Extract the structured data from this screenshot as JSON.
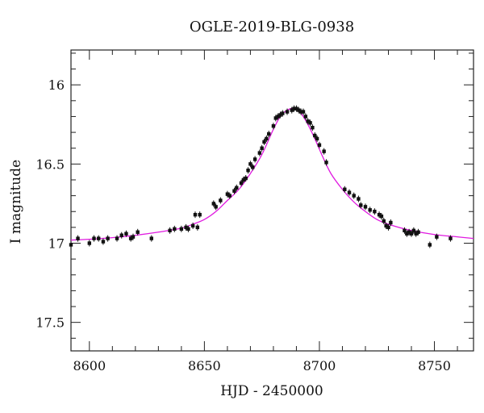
{
  "chart_data": {
    "type": "scatter",
    "title": "OGLE-2019-BLG-0938",
    "xlabel": "HJD - 2450000",
    "ylabel": "I magnitude",
    "xlim": [
      8592,
      8767
    ],
    "ylim": [
      17.68,
      15.78
    ],
    "y_inverted": true,
    "x_ticks": [
      8600,
      8650,
      8700,
      8750
    ],
    "y_ticks": [
      16,
      16.5,
      17,
      17.5
    ],
    "x_tick_labels": [
      "8600",
      "8650",
      "8700",
      "8750"
    ],
    "y_tick_labels": [
      "16",
      "16.5",
      "17",
      "17.5"
    ],
    "grid": false,
    "colors": {
      "points": "#111111",
      "model": "#e01be0"
    },
    "model": {
      "name": "",
      "x": [
        8592,
        8600,
        8610,
        8620,
        8630,
        8640,
        8645,
        8650,
        8655,
        8660,
        8665,
        8670,
        8675,
        8680,
        8683,
        8686,
        8689,
        8692,
        8695,
        8698,
        8701,
        8705,
        8710,
        8715,
        8720,
        8725,
        8730,
        8740,
        8750,
        8760,
        8767
      ],
      "y": [
        16.98,
        16.975,
        16.965,
        16.95,
        16.93,
        16.905,
        16.88,
        16.85,
        16.8,
        16.73,
        16.66,
        16.56,
        16.44,
        16.28,
        16.2,
        16.16,
        16.15,
        16.18,
        16.25,
        16.34,
        16.44,
        16.56,
        16.66,
        16.74,
        16.8,
        16.85,
        16.88,
        16.92,
        16.945,
        16.96,
        16.97
      ]
    },
    "series": [
      {
        "name": "",
        "x": [
          8592,
          8595,
          8600,
          8602,
          8604,
          8606,
          8608,
          8612,
          8614,
          8616,
          8618,
          8619,
          8621,
          8627,
          8635,
          8637,
          8640,
          8642,
          8643,
          8645,
          8646,
          8647,
          8648,
          8654,
          8655,
          8657,
          8660,
          8661,
          8663,
          8664,
          8666,
          8667,
          8668,
          8669,
          8670,
          8671,
          8672,
          8674,
          8675,
          8676,
          8677,
          8678,
          8680,
          8681,
          8682,
          8683,
          8684,
          8686,
          8688,
          8689,
          8690,
          8691,
          8692,
          8693,
          8694,
          8695,
          8696,
          8697,
          8698,
          8699,
          8700,
          8702,
          8703,
          8711,
          8713,
          8715,
          8717,
          8718,
          8720,
          8722,
          8724,
          8726,
          8727,
          8728,
          8729,
          8730,
          8731,
          8737,
          8738,
          8739,
          8740,
          8741,
          8742,
          8743,
          8748,
          8751,
          8757
        ],
        "y": [
          17.01,
          16.97,
          17.0,
          16.97,
          16.97,
          16.99,
          16.97,
          16.97,
          16.95,
          16.94,
          16.97,
          16.96,
          16.93,
          16.97,
          16.92,
          16.91,
          16.91,
          16.9,
          16.91,
          16.89,
          16.82,
          16.9,
          16.82,
          16.75,
          16.77,
          16.73,
          16.69,
          16.7,
          16.67,
          16.65,
          16.62,
          16.6,
          16.59,
          16.54,
          16.5,
          16.52,
          16.47,
          16.43,
          16.4,
          16.36,
          16.34,
          16.31,
          16.26,
          16.21,
          16.2,
          16.19,
          16.18,
          16.17,
          16.16,
          16.15,
          16.15,
          16.16,
          16.17,
          16.17,
          16.2,
          16.23,
          16.24,
          16.27,
          16.32,
          16.34,
          16.38,
          16.42,
          16.49,
          16.66,
          16.68,
          16.7,
          16.72,
          16.76,
          16.77,
          16.79,
          16.8,
          16.82,
          16.83,
          16.86,
          16.89,
          16.9,
          16.87,
          16.92,
          16.94,
          16.93,
          16.94,
          16.92,
          16.94,
          16.93,
          17.01,
          16.96,
          16.97
        ]
      }
    ]
  }
}
